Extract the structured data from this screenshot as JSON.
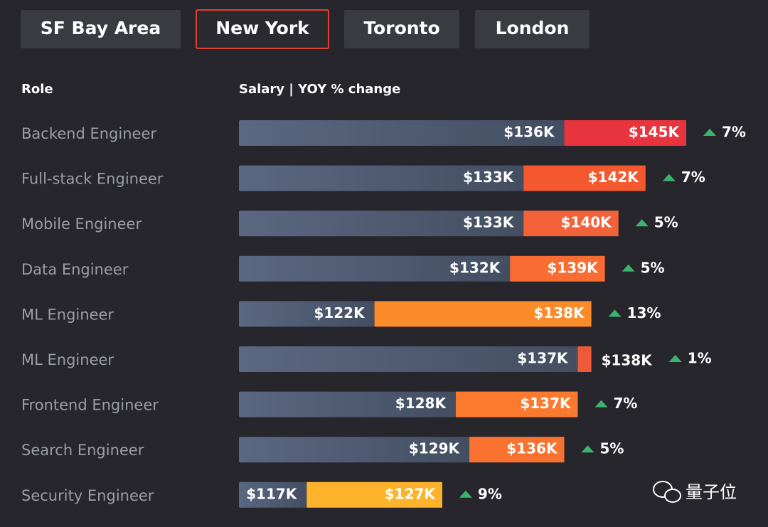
{
  "tabs": [
    "SF Bay Area",
    "New York",
    "Toronto",
    "London"
  ],
  "active_tab": 1,
  "watermark": "量子位",
  "chart_data": {
    "type": "bar",
    "role_header": "Role",
    "salary_header": "Salary | YOY % change",
    "categories": [
      "Backend Engineer",
      "Full-stack Engineer",
      "Mobile Engineer",
      "Data Engineer",
      "ML Engineer",
      "ML Engineer",
      "Frontend Engineer",
      "Search Engineer",
      "Security Engineer"
    ],
    "previous": [
      136,
      133,
      133,
      132,
      122,
      137,
      128,
      129,
      117
    ],
    "previous_labels": [
      "$136K",
      "$133K",
      "$133K",
      "$132K",
      "$122K",
      "$137K",
      "$128K",
      "$129K",
      "$117K"
    ],
    "values": [
      145,
      142,
      140,
      139,
      138,
      138,
      137,
      136,
      127
    ],
    "value_labels": [
      "$145K",
      "$142K",
      "$140K",
      "$139K",
      "$138K",
      "$138K",
      "$137K",
      "$136K",
      "$127K"
    ],
    "change": [
      7,
      7,
      5,
      5,
      13,
      1,
      7,
      5,
      9
    ],
    "change_labels": [
      "7%",
      "7%",
      "5%",
      "5%",
      "13%",
      "1%",
      "7%",
      "5%",
      "9%"
    ],
    "colors": [
      "#e8343f",
      "#f4582e",
      "#f4623a",
      "#f96c32",
      "#fc8c2a",
      "#ec5a3a",
      "#fb7a2e",
      "#f97230",
      "#fdb42c"
    ],
    "previous_color": "#56627a",
    "up_color": "#3cb46e",
    "xlim": [
      112,
      145
    ]
  }
}
